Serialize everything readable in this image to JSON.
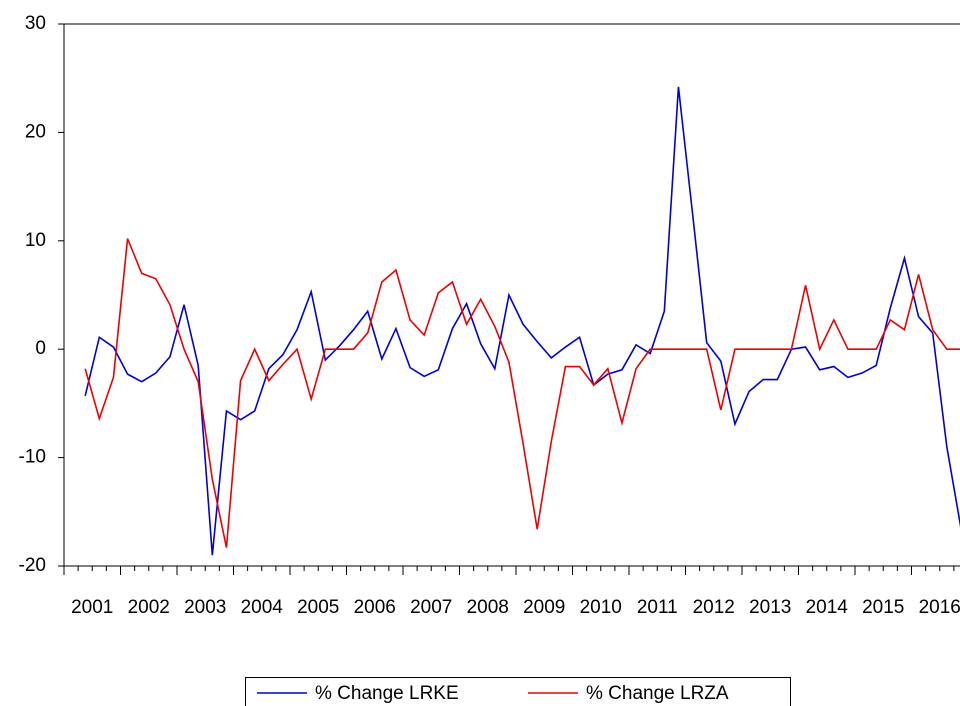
{
  "chart_data": {
    "type": "line",
    "x": [
      2001.375,
      2001.625,
      2001.875,
      2002.125,
      2002.375,
      2002.625,
      2002.875,
      2003.125,
      2003.375,
      2003.625,
      2003.875,
      2004.125,
      2004.375,
      2004.625,
      2004.875,
      2005.125,
      2005.375,
      2005.625,
      2005.875,
      2006.125,
      2006.375,
      2006.625,
      2006.875,
      2007.125,
      2007.375,
      2007.625,
      2007.875,
      2008.125,
      2008.375,
      2008.625,
      2008.875,
      2009.125,
      2009.375,
      2009.625,
      2009.875,
      2010.125,
      2010.375,
      2010.625,
      2010.875,
      2011.125,
      2011.375,
      2011.625,
      2011.875,
      2012.125,
      2012.375,
      2012.625,
      2012.875,
      2013.125,
      2013.375,
      2013.625,
      2013.875,
      2014.125,
      2014.375,
      2014.625,
      2014.875,
      2015.125,
      2015.375,
      2015.625,
      2015.875,
      2016.125,
      2016.375,
      2016.625,
      2016.875
    ],
    "series": [
      {
        "name": "% Change LRKE",
        "color": "#0000dd",
        "values": [
          -4.3,
          1.1,
          0.2,
          -2.3,
          -3.0,
          -2.2,
          -0.7,
          4.1,
          -1.5,
          -19.0,
          -5.7,
          -6.5,
          -5.7,
          -1.8,
          -0.5,
          1.8,
          5.3,
          -1.0,
          0.3,
          1.8,
          3.5,
          -0.9,
          1.9,
          -1.7,
          -2.5,
          -1.9,
          1.9,
          4.2,
          0.5,
          -1.8,
          5.0,
          2.3,
          0.7,
          -0.8,
          0.2,
          1.1,
          -3.3,
          -2.3,
          -1.9,
          0.4,
          -0.4,
          3.5,
          24.2,
          12.5,
          0.6,
          -1.1,
          -6.9,
          -3.9,
          -2.8,
          -2.8,
          0.0,
          0.2,
          -1.9,
          -1.6,
          -2.6,
          -2.2,
          -1.5,
          3.8,
          8.4,
          3.0,
          1.5,
          -9.0,
          -16.5
        ]
      },
      {
        "name": "% Change LRZA",
        "color": "#ee0000",
        "values": [
          -1.8,
          -6.4,
          -2.6,
          10.2,
          7.0,
          6.5,
          4.1,
          0.0,
          -3.0,
          -12.0,
          -18.3,
          -2.9,
          0.0,
          -2.9,
          -1.4,
          0.0,
          -4.6,
          0.0,
          0.0,
          0.0,
          1.5,
          6.2,
          7.3,
          2.7,
          1.3,
          5.2,
          6.2,
          2.3,
          4.6,
          2.1,
          -1.2,
          -8.7,
          -16.6,
          -8.5,
          -1.6,
          -1.6,
          -3.3,
          -1.8,
          -6.8,
          -1.8,
          0.0,
          0.0,
          0.0,
          0.0,
          0.0,
          -5.6,
          0.0,
          0.0,
          0.0,
          0.0,
          0.0,
          5.9,
          0.0,
          2.7,
          0.0,
          0.0,
          0.0,
          2.7,
          1.8,
          6.9,
          1.8,
          0.0,
          0.0
        ]
      }
    ],
    "xlim": [
      2001,
      2017
    ],
    "xticks": [
      2001,
      2002,
      2003,
      2004,
      2005,
      2006,
      2007,
      2008,
      2009,
      2010,
      2011,
      2012,
      2013,
      2014,
      2015,
      2016
    ],
    "ylim": [
      -20,
      30
    ],
    "yticks": [
      -20,
      -10,
      0,
      10,
      20,
      30
    ],
    "legend": "bottom"
  }
}
